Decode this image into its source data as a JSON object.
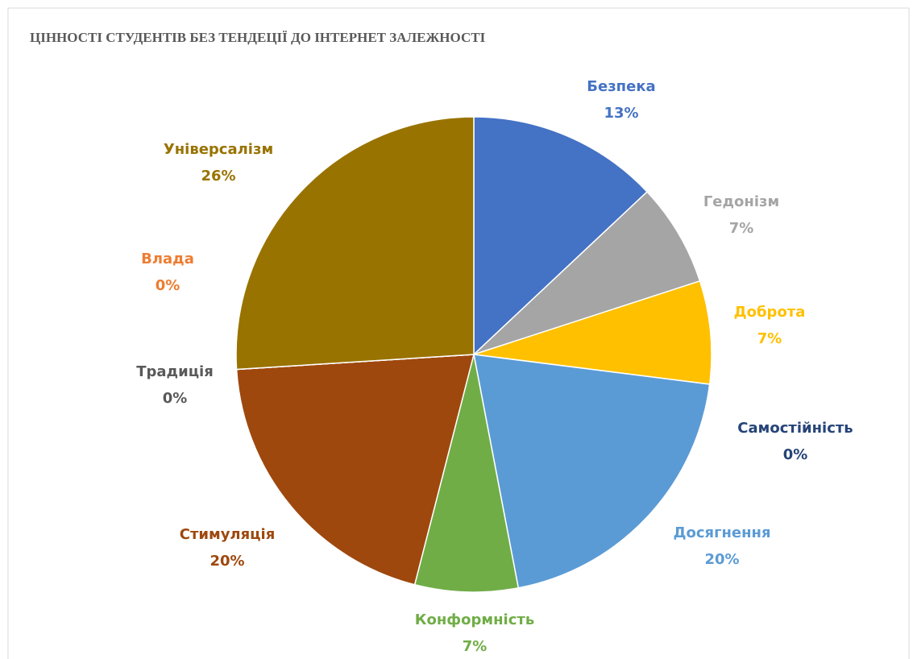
{
  "chart_data": {
    "type": "pie",
    "title": "ЦІННОСТІ СТУДЕНТІВ БЕЗ ТЕНДЕЦІЇ ДО ІНТЕРНЕТ ЗАЛЕЖНОСТІ",
    "categories": [
      "Безпека",
      "Гедонізм",
      "Доброта",
      "Самостійність",
      "Досягнення",
      "Конформність",
      "Стимуляція",
      "Традиція",
      "Влада",
      "Універсалізм"
    ],
    "values": [
      13,
      7,
      7,
      0,
      20,
      7,
      20,
      0,
      0,
      26
    ],
    "value_labels": [
      "13%",
      "7%",
      "7%",
      "0%",
      "20%",
      "7%",
      "20%",
      "0%",
      "0%",
      "26%"
    ],
    "colors": [
      "#4472c4",
      "#a5a5a5",
      "#ffc000",
      "#264478",
      "#5b9bd5",
      "#70ad47",
      "#9e480e",
      "#636363",
      "#ed7d31",
      "#997300"
    ]
  }
}
